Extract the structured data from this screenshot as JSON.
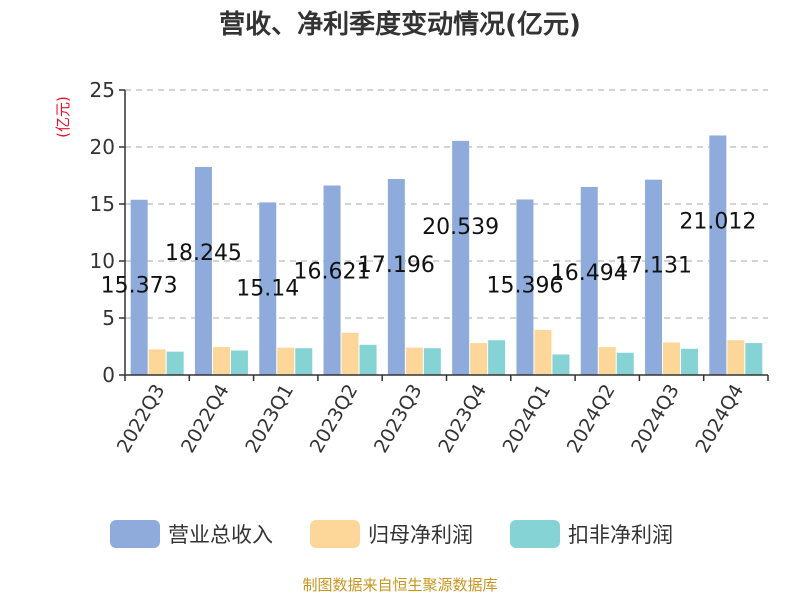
{
  "chart_data": {
    "type": "bar",
    "title": "营收、净利季度变动情况(亿元)",
    "ylabel": "(亿元)",
    "xlabel": "",
    "ylim": [
      0,
      25
    ],
    "yticks": [
      0,
      5,
      10,
      15,
      20,
      25
    ],
    "grid": true,
    "legend_position": "bottom",
    "categories": [
      "2022Q3",
      "2022Q4",
      "2023Q1",
      "2023Q2",
      "2023Q3",
      "2023Q4",
      "2024Q1",
      "2024Q2",
      "2024Q3",
      "2024Q4"
    ],
    "series": [
      {
        "name": "营业总收入",
        "color": "#8eabdb",
        "values": [
          15.373,
          18.245,
          15.14,
          16.621,
          17.196,
          20.539,
          15.396,
          16.494,
          17.131,
          21.012
        ],
        "show_labels": true
      },
      {
        "name": "归母净利润",
        "color": "#fdd79a",
        "values": [
          2.25,
          2.45,
          2.4,
          3.7,
          2.4,
          2.8,
          3.95,
          2.45,
          2.85,
          3.05
        ],
        "show_labels": false
      },
      {
        "name": "扣非净利润",
        "color": "#86d3d6",
        "values": [
          2.05,
          2.15,
          2.35,
          2.65,
          2.35,
          3.05,
          1.8,
          1.95,
          2.3,
          2.8
        ],
        "show_labels": false
      }
    ]
  },
  "source": "制图数据来自恒生聚源数据库"
}
